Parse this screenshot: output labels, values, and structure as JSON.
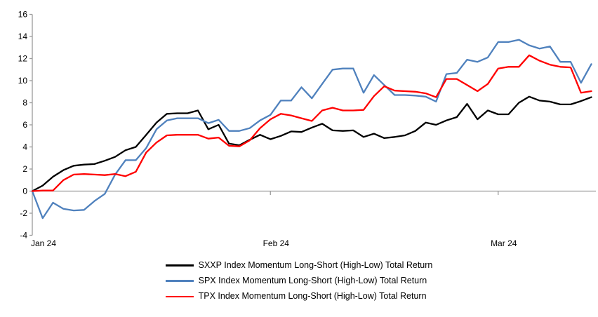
{
  "chart_data": {
    "type": "line",
    "title": "",
    "xlabel": "",
    "ylabel": "",
    "ylim": [
      -4,
      16
    ],
    "y_ticks": [
      16,
      14,
      12,
      10,
      8,
      6,
      4,
      2,
      0,
      -2,
      -4
    ],
    "x_tick_labels": [
      "Jan 24",
      "Feb 24",
      "Mar 24"
    ],
    "x_tick_indices": [
      0,
      23,
      45
    ],
    "n_points": 55,
    "grid": "zero-line-only",
    "legend_position": "bottom",
    "colors": {
      "axis": "#9C9C9C",
      "zero_line": "#9C9C9C",
      "text": "#000000"
    },
    "series": [
      {
        "name": "SXXP Index Momentum Long-Short (High-Low) Total Return",
        "color": "#000000",
        "values": [
          0,
          0.5,
          1.3,
          1.9,
          2.3,
          2.4,
          2.45,
          2.75,
          3.1,
          3.7,
          4.0,
          5.1,
          6.2,
          7.0,
          7.05,
          7.05,
          7.3,
          5.6,
          6.0,
          4.3,
          4.15,
          4.65,
          5.1,
          4.7,
          5.0,
          5.4,
          5.35,
          5.75,
          6.1,
          5.5,
          5.45,
          5.5,
          4.9,
          5.2,
          4.8,
          4.9,
          5.05,
          5.45,
          6.2,
          6.0,
          6.4,
          6.7,
          7.9,
          6.5,
          7.3,
          6.95,
          6.95,
          8.0,
          8.55,
          8.2,
          8.1,
          7.85,
          7.85,
          8.15,
          8.5
        ]
      },
      {
        "name": "SPX Index Momentum Long-Short (High-Low) Total Return",
        "color": "#4F81BD",
        "values": [
          0,
          -2.45,
          -1.05,
          -1.6,
          -1.75,
          -1.7,
          -0.9,
          -0.25,
          1.5,
          2.8,
          2.8,
          3.9,
          5.6,
          6.4,
          6.6,
          6.6,
          6.6,
          6.15,
          6.45,
          5.45,
          5.45,
          5.7,
          6.4,
          6.9,
          8.2,
          8.2,
          9.4,
          8.4,
          9.7,
          11.0,
          11.1,
          11.1,
          8.9,
          10.5,
          9.6,
          8.7,
          8.7,
          8.65,
          8.55,
          8.1,
          10.6,
          10.7,
          11.9,
          11.7,
          12.1,
          13.5,
          13.5,
          13.7,
          13.2,
          12.9,
          13.1,
          11.7,
          11.7,
          9.8,
          11.5
        ]
      },
      {
        "name": "TPX Index Momentum Long-Short (High-Low) Total Return",
        "color": "#FF0000",
        "values": [
          0,
          0.05,
          0.05,
          1.0,
          1.5,
          1.55,
          1.5,
          1.45,
          1.55,
          1.35,
          1.75,
          3.5,
          4.4,
          5.05,
          5.1,
          5.1,
          5.1,
          4.75,
          4.85,
          4.1,
          4.05,
          4.6,
          5.7,
          6.5,
          7.0,
          6.85,
          6.6,
          6.35,
          7.3,
          7.55,
          7.3,
          7.3,
          7.35,
          8.6,
          9.5,
          9.1,
          9.05,
          9.0,
          8.85,
          8.5,
          10.15,
          10.15,
          9.6,
          9.05,
          9.7,
          11.1,
          11.25,
          11.25,
          12.3,
          11.8,
          11.45,
          11.25,
          11.2,
          8.9,
          9.05
        ]
      }
    ]
  }
}
